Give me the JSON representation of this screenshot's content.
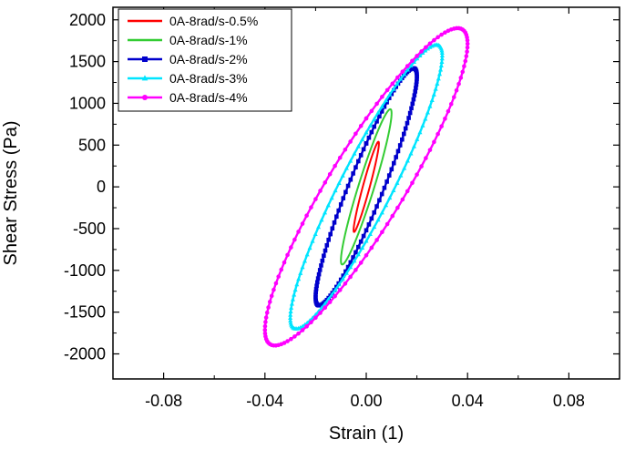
{
  "chart_data": {
    "type": "line",
    "title": "",
    "xlabel": "Strain (1)",
    "ylabel": "Shear Stress (Pa)",
    "xlim": [
      -0.1,
      0.1
    ],
    "ylim": [
      -2300,
      2150
    ],
    "x_ticks": [
      -0.08,
      -0.04,
      0.0,
      0.04,
      0.08
    ],
    "x_tick_labels": [
      "-0.08",
      "-0.04",
      "0.00",
      "0.04",
      "0.08"
    ],
    "y_ticks": [
      -2000,
      -1500,
      -1000,
      -500,
      0,
      500,
      1000,
      1500,
      2000
    ],
    "y_tick_labels": [
      "-2000",
      "-1500",
      "-1000",
      "-500",
      "0",
      "500",
      "1000",
      "1500",
      "2000"
    ],
    "grid": false,
    "legend_position": "top-left",
    "series": [
      {
        "name": "0A-8rad/s-0.5%",
        "color": "#ff0000",
        "marker": "none",
        "strain_amplitude": 0.005,
        "stress_amplitude": 540,
        "loop_half_width_at_zero_strain": 150
      },
      {
        "name": "0A-8rad/s-1%",
        "color": "#33cc33",
        "marker": "none",
        "strain_amplitude": 0.01,
        "stress_amplitude": 930,
        "loop_half_width_at_zero_strain": 300
      },
      {
        "name": "0A-8rad/s-2%",
        "color": "#0000cc",
        "marker": "square",
        "strain_amplitude": 0.02,
        "stress_amplitude": 1420,
        "loop_half_width_at_zero_strain": 520
      },
      {
        "name": "0A-8rad/s-3%",
        "color": "#00e5ff",
        "marker": "triangle",
        "strain_amplitude": 0.03,
        "stress_amplitude": 1700,
        "loop_half_width_at_zero_strain": 650
      },
      {
        "name": "0A-8rad/s-4%",
        "color": "#ff00ff",
        "marker": "circle",
        "strain_amplitude": 0.04,
        "stress_amplitude": 1900,
        "loop_half_width_at_zero_strain": 820
      }
    ]
  }
}
